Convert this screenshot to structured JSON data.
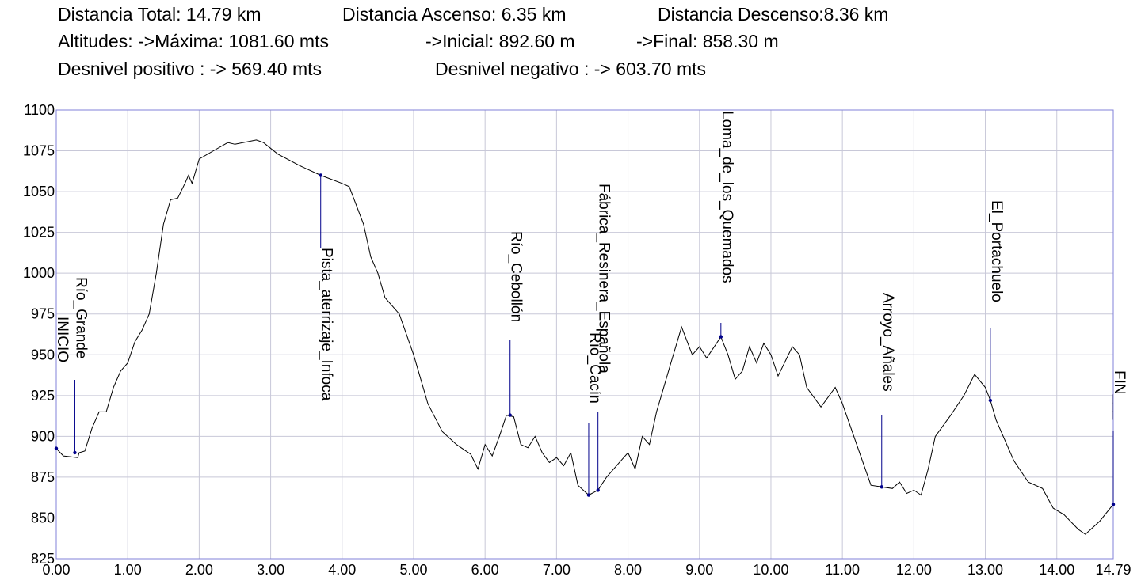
{
  "chart_data": {
    "type": "line",
    "header": [
      [
        "Distancia Total: 14.79 km",
        "Distancia Ascenso: 6.35 km",
        "Distancia Descenso:8.36 km"
      ],
      [
        "Altitudes: ->Máxima: 1081.60 mts",
        "->Inicial: 892.60 m",
        "->Final: 858.30 m"
      ],
      [
        "Desnivel positivo : -> 569.40 mts",
        "Desnivel negativo : -> 603.70 mts"
      ]
    ],
    "x": [
      0,
      0.1,
      0.3,
      0.32,
      0.4,
      0.5,
      0.6,
      0.7,
      0.8,
      0.9,
      1.0,
      1.1,
      1.2,
      1.3,
      1.4,
      1.5,
      1.6,
      1.7,
      1.8,
      1.85,
      1.9,
      2.0,
      2.2,
      2.4,
      2.5,
      2.8,
      2.9,
      3.1,
      3.4,
      3.7,
      4.0,
      4.1,
      4.3,
      4.4,
      4.5,
      4.6,
      4.8,
      5.0,
      5.2,
      5.4,
      5.6,
      5.8,
      5.9,
      6.0,
      6.1,
      6.2,
      6.3,
      6.4,
      6.5,
      6.6,
      6.7,
      6.8,
      6.9,
      7.0,
      7.1,
      7.2,
      7.3,
      7.45,
      7.58,
      7.7,
      7.9,
      8.0,
      8.1,
      8.2,
      8.3,
      8.4,
      8.6,
      8.75,
      8.9,
      9.0,
      9.1,
      9.3,
      9.4,
      9.5,
      9.6,
      9.7,
      9.8,
      9.9,
      10.0,
      10.1,
      10.3,
      10.4,
      10.5,
      10.7,
      10.9,
      11.0,
      11.2,
      11.4,
      11.55,
      11.7,
      11.8,
      11.9,
      12.0,
      12.1,
      12.2,
      12.3,
      12.5,
      12.7,
      12.85,
      13.0,
      13.07,
      13.15,
      13.3,
      13.4,
      13.6,
      13.8,
      13.95,
      14.1,
      14.3,
      14.4,
      14.6,
      14.79
    ],
    "values": [
      892.6,
      888,
      887,
      890,
      891,
      905,
      915,
      915,
      930,
      940,
      945,
      958,
      965,
      975,
      1000,
      1030,
      1045,
      1046,
      1055,
      1060,
      1055,
      1070,
      1075,
      1080,
      1079,
      1081.6,
      1080,
      1073,
      1066,
      1060,
      1055,
      1053,
      1030,
      1010,
      1000,
      985,
      975,
      950,
      920,
      903,
      895,
      889,
      880,
      895,
      888,
      900,
      913,
      912,
      895,
      893,
      900,
      890,
      884,
      887,
      882,
      890,
      870,
      864,
      867,
      875,
      885,
      890,
      880,
      900,
      895,
      915,
      945,
      967,
      950,
      955,
      948,
      961,
      950,
      935,
      940,
      955,
      945,
      957,
      950,
      937,
      955,
      950,
      930,
      918,
      930,
      920,
      895,
      870,
      869,
      868,
      872,
      865,
      867,
      864,
      880,
      900,
      912,
      925,
      938,
      930,
      922,
      910,
      895,
      885,
      872,
      868,
      856,
      852,
      843,
      840,
      848,
      858.3
    ],
    "color": "#000000",
    "waypoints": [
      {
        "label": "INICIO",
        "km": 0,
        "elevation": 892.6
      },
      {
        "label": "Río_Grande",
        "km": 0.26,
        "elevation": 890
      },
      {
        "label": "Pista_aterrizaje_Infoca",
        "km": 3.7,
        "elevation": 1060
      },
      {
        "label": "Río_Cebollón",
        "km": 6.35,
        "elevation": 913
      },
      {
        "label": "Río_Cacín",
        "km": 7.45,
        "elevation": 864
      },
      {
        "label": "Fábrica_Resinera_Española",
        "km": 7.58,
        "elevation": 867
      },
      {
        "label": "Loma_de_los_Quemados",
        "km": 9.3,
        "elevation": 961
      },
      {
        "label": "Arroyo_Añales",
        "km": 11.55,
        "elevation": 869
      },
      {
        "label": "El_Portachuelo",
        "km": 13.07,
        "elevation": 922
      },
      {
        "label": "FIN___",
        "km": 14.79,
        "elevation": 858.3
      }
    ],
    "waypoint_color": "#00008b",
    "xlim": [
      0,
      14.79
    ],
    "xticks": [
      {
        "value": 0,
        "label": "0.00"
      },
      {
        "value": 1,
        "label": "1.00"
      },
      {
        "value": 2,
        "label": "2.00"
      },
      {
        "value": 3,
        "label": "3.00"
      },
      {
        "value": 4,
        "label": "4.00"
      },
      {
        "value": 5,
        "label": "5.00"
      },
      {
        "value": 6,
        "label": "6.00"
      },
      {
        "value": 7,
        "label": "7.00"
      },
      {
        "value": 8,
        "label": "8.00"
      },
      {
        "value": 9,
        "label": "9.00"
      },
      {
        "value": 10,
        "label": "10.00"
      },
      {
        "value": 11,
        "label": "11.00"
      },
      {
        "value": 12,
        "label": "12.00"
      },
      {
        "value": 13,
        "label": "13.00"
      },
      {
        "value": 14,
        "label": "14.00"
      },
      {
        "value": 14.79,
        "label": "14.79"
      }
    ],
    "ylim": [
      825,
      1100
    ],
    "yticks": [
      825,
      850,
      875,
      900,
      925,
      950,
      975,
      1000,
      1025,
      1050,
      1075,
      1100
    ],
    "grid": true
  }
}
